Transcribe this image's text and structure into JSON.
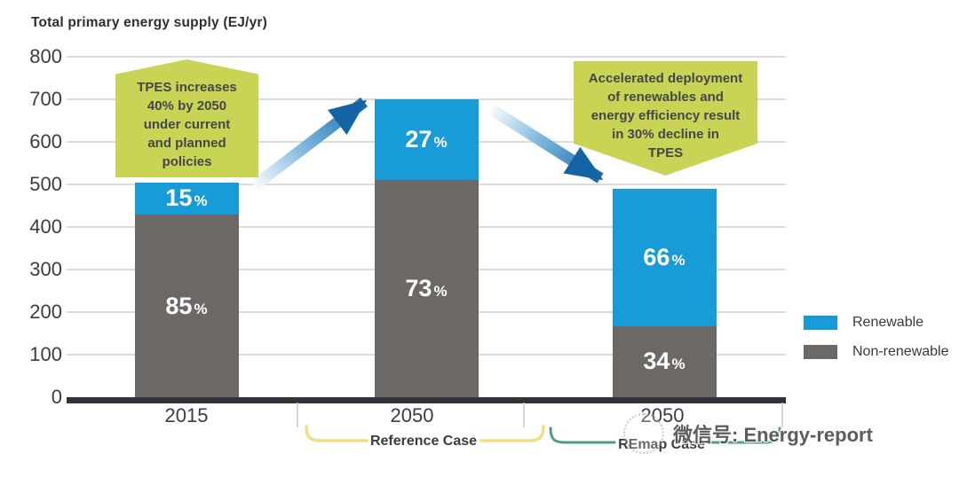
{
  "title": "Total primary energy supply (EJ/yr)",
  "callouts": {
    "left": "TPES increases\n40% by 2050\nunder current\nand planned\npolicies",
    "right": "Accelerated deployment\nof renewables and\nenergy efficiency result\nin 30% decline in\nTPES"
  },
  "legend": {
    "items": [
      {
        "label": "Renewable",
        "color": "#189cd8"
      },
      {
        "label": "Non-renewable",
        "color": "#6b6865"
      }
    ]
  },
  "brackets": [
    {
      "label": "Reference Case",
      "color": "#f2dd80"
    },
    {
      "label": "REmap Case",
      "color": "#4f9c80"
    }
  ],
  "watermark": {
    "text": "微信号: Energy-report"
  },
  "chart_data": {
    "type": "bar",
    "stacked": true,
    "title": "Total primary energy supply (EJ/yr)",
    "ylabel": "Total primary energy supply (EJ/yr)",
    "xlabel": "",
    "categories": [
      "2015",
      "2050",
      "2050"
    ],
    "category_groups": [
      "",
      "Reference Case",
      "REmap Case"
    ],
    "totals": [
      505,
      700,
      490
    ],
    "series": [
      {
        "name": "Renewable",
        "color": "#189cd8",
        "values": [
          76,
          189,
          323
        ],
        "pct_labels": [
          "15",
          "27",
          "66"
        ]
      },
      {
        "name": "Non-renewable",
        "color": "#6b6865",
        "values": [
          429,
          511,
          167
        ],
        "pct_labels": [
          "85",
          "73",
          "34"
        ]
      }
    ],
    "ylim": [
      0,
      800
    ],
    "yticks": [
      800,
      700,
      600,
      500,
      400,
      300,
      200,
      100,
      0
    ],
    "grid": true,
    "legend_position": "right",
    "annotations": [
      "TPES increases 40% by 2050 under current and planned policies",
      "Accelerated deployment of renewables and energy efficiency result in 30% decline in TPES"
    ]
  }
}
